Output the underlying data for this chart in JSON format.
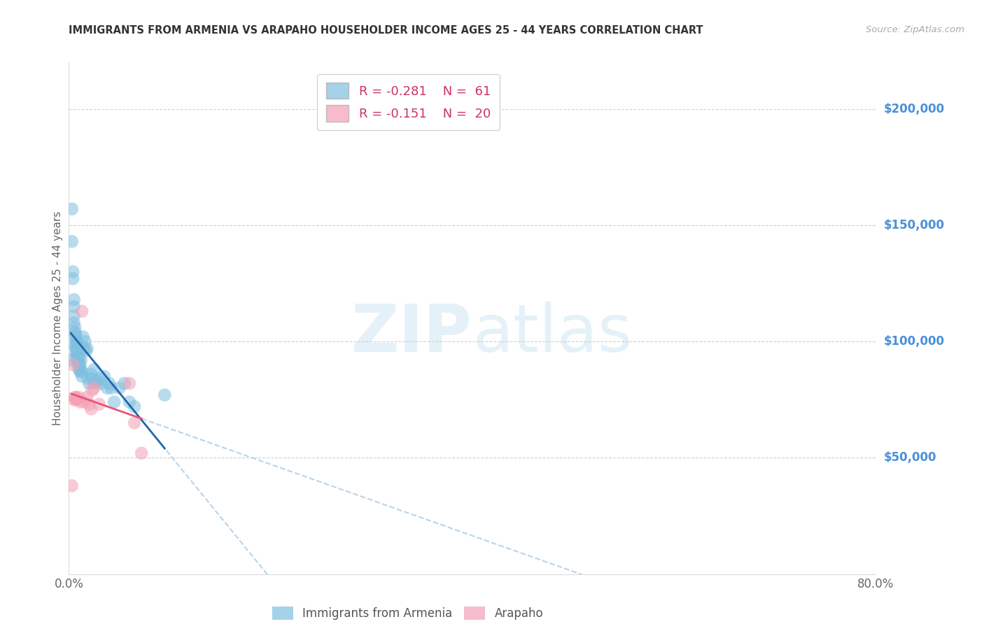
{
  "title": "IMMIGRANTS FROM ARMENIA VS ARAPAHO HOUSEHOLDER INCOME AGES 25 - 44 YEARS CORRELATION CHART",
  "source": "Source: ZipAtlas.com",
  "ylabel": "Householder Income Ages 25 - 44 years",
  "ytick_labels": [
    "$50,000",
    "$100,000",
    "$150,000",
    "$200,000"
  ],
  "ytick_values": [
    50000,
    100000,
    150000,
    200000
  ],
  "ymin": 0,
  "ymax": 220000,
  "xmin": 0.0,
  "xmax": 0.8,
  "watermark_zip": "ZIP",
  "watermark_atlas": "atlas",
  "legend_armenia_r": "-0.281",
  "legend_armenia_n": "61",
  "legend_arapaho_r": "-0.151",
  "legend_arapaho_n": "20",
  "legend_label_armenia": "Immigrants from Armenia",
  "legend_label_arapaho": "Arapaho",
  "armenia_color": "#7fbfdf",
  "arapaho_color": "#f4a0b5",
  "armenia_line_color": "#2166ac",
  "arapaho_line_color": "#e8547a",
  "dashed_line_color": "#b8d4e8",
  "title_color": "#333333",
  "axis_label_color": "#666666",
  "ytick_color": "#4a90d9",
  "xtick_color": "#666666",
  "grid_color": "#cccccc",
  "background_color": "#ffffff",
  "armenia_x": [
    0.002,
    0.003,
    0.003,
    0.004,
    0.004,
    0.005,
    0.005,
    0.005,
    0.005,
    0.006,
    0.006,
    0.006,
    0.006,
    0.007,
    0.007,
    0.007,
    0.007,
    0.008,
    0.008,
    0.008,
    0.008,
    0.008,
    0.009,
    0.009,
    0.009,
    0.009,
    0.01,
    0.01,
    0.01,
    0.01,
    0.01,
    0.011,
    0.011,
    0.012,
    0.012,
    0.013,
    0.013,
    0.014,
    0.015,
    0.016,
    0.017,
    0.018,
    0.019,
    0.02,
    0.022,
    0.023,
    0.025,
    0.026,
    0.028,
    0.03,
    0.032,
    0.035,
    0.038,
    0.04,
    0.042,
    0.045,
    0.05,
    0.055,
    0.06,
    0.065,
    0.095
  ],
  "armenia_y": [
    92000,
    157000,
    143000,
    130000,
    127000,
    118000,
    115000,
    111000,
    108000,
    106000,
    104000,
    102000,
    98000,
    103000,
    100000,
    97000,
    95000,
    100000,
    98000,
    96000,
    94000,
    92000,
    97000,
    95000,
    92000,
    90000,
    98000,
    96000,
    93000,
    91000,
    88000,
    90000,
    87000,
    92000,
    88000,
    87000,
    85000,
    102000,
    97000,
    100000,
    96000,
    97000,
    84000,
    82000,
    86000,
    84000,
    88000,
    82000,
    83000,
    84000,
    82000,
    85000,
    80000,
    82000,
    80000,
    74000,
    80000,
    82000,
    74000,
    72000,
    77000
  ],
  "arapaho_x": [
    0.003,
    0.004,
    0.005,
    0.006,
    0.007,
    0.007,
    0.008,
    0.01,
    0.011,
    0.013,
    0.015,
    0.018,
    0.02,
    0.022,
    0.023,
    0.025,
    0.03,
    0.06,
    0.065,
    0.072
  ],
  "arapaho_y": [
    38000,
    90000,
    75000,
    76000,
    76000,
    75000,
    75000,
    76000,
    74000,
    113000,
    74000,
    76000,
    73000,
    71000,
    79000,
    80000,
    73000,
    82000,
    65000,
    52000
  ]
}
